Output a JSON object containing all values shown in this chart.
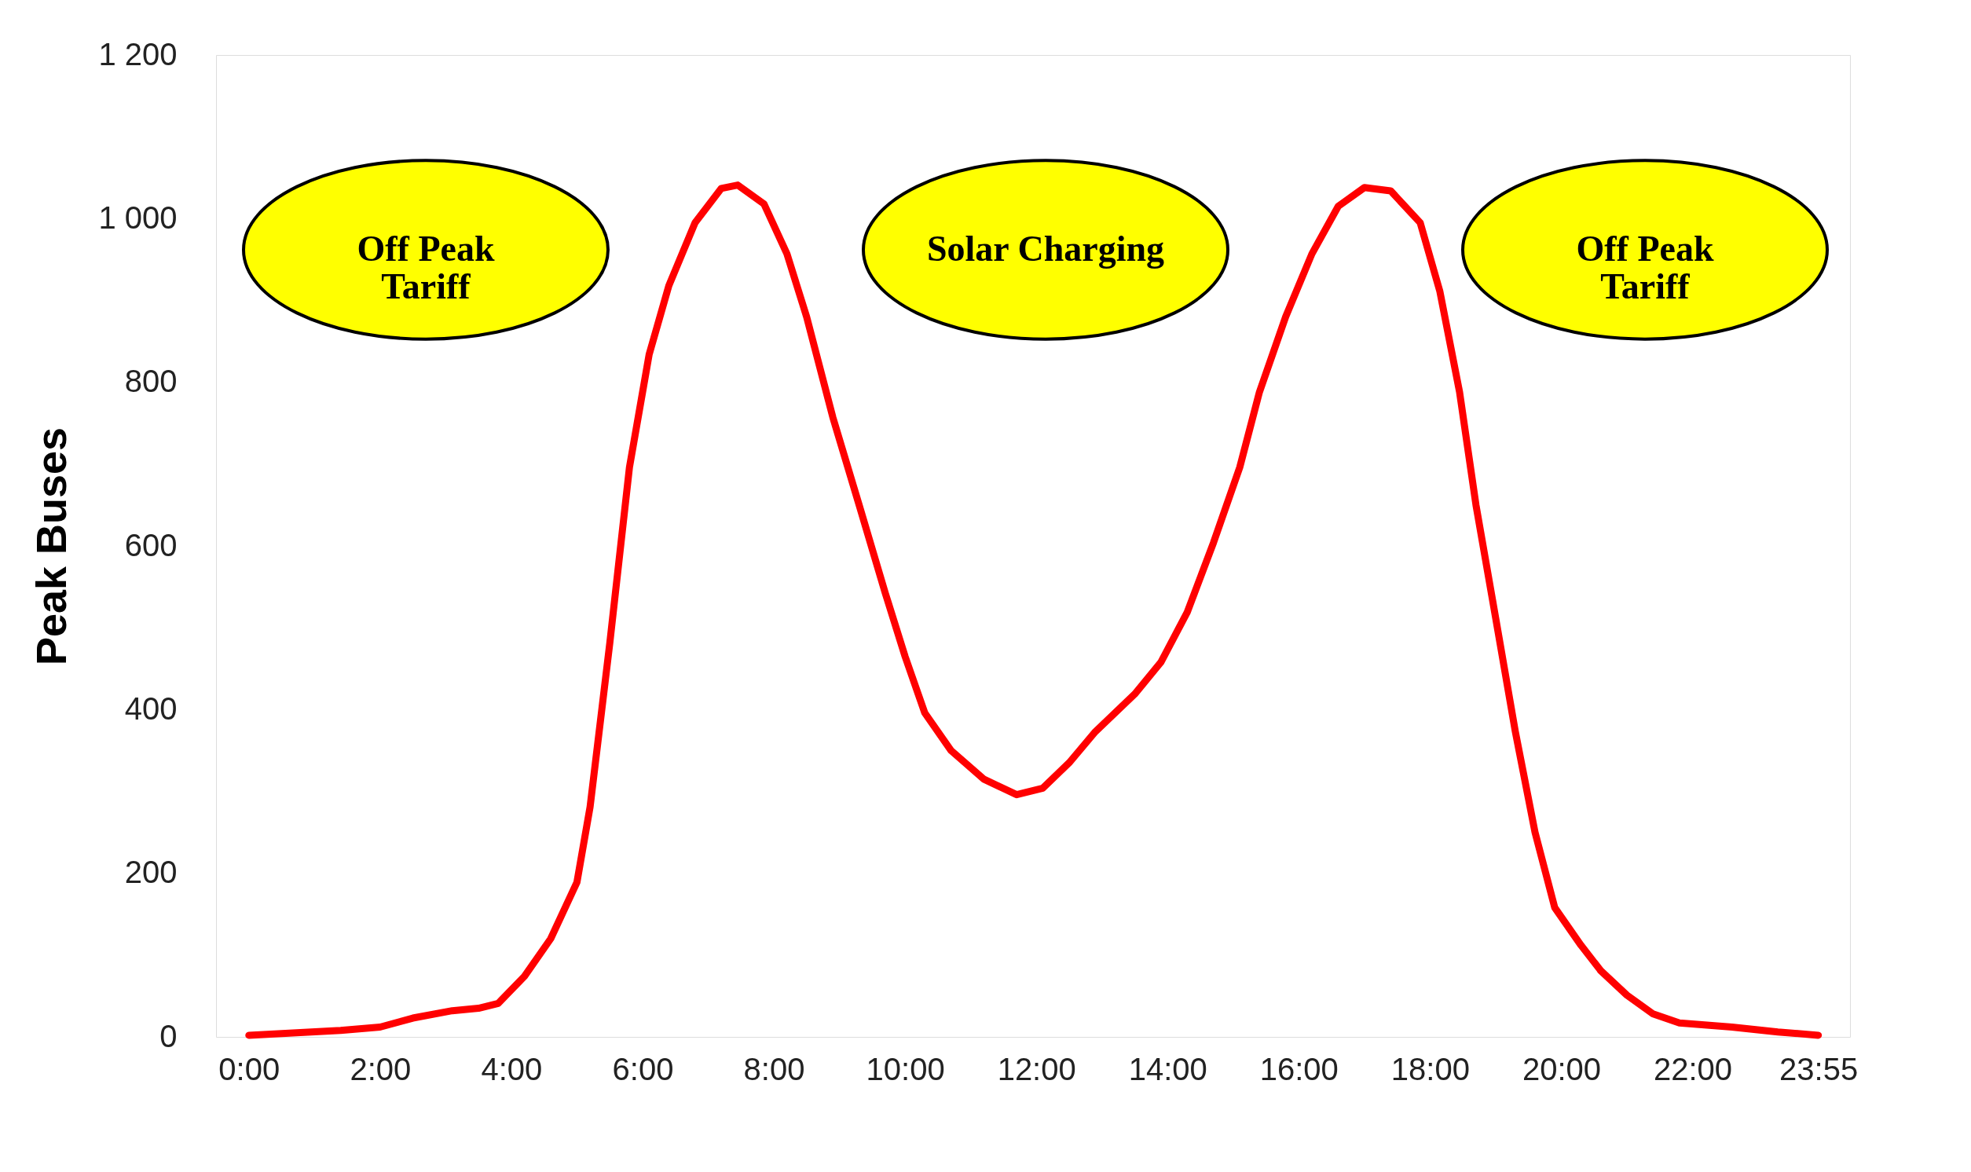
{
  "chart_data": {
    "type": "line",
    "ylabel": "Peak Buses",
    "xlim": [
      -0.5,
      24.4
    ],
    "ylim": [
      0,
      1200
    ],
    "xticks": [
      {
        "value": 0,
        "label": "0:00"
      },
      {
        "value": 2,
        "label": "2:00"
      },
      {
        "value": 4,
        "label": "4:00"
      },
      {
        "value": 6,
        "label": "6:00"
      },
      {
        "value": 8,
        "label": "8:00"
      },
      {
        "value": 10,
        "label": "10:00"
      },
      {
        "value": 12,
        "label": "12:00"
      },
      {
        "value": 14,
        "label": "14:00"
      },
      {
        "value": 16,
        "label": "16:00"
      },
      {
        "value": 18,
        "label": "18:00"
      },
      {
        "value": 20,
        "label": "20:00"
      },
      {
        "value": 22,
        "label": "22:00"
      },
      {
        "value": 23.917,
        "label": "23:55"
      }
    ],
    "yticks": [
      0,
      200,
      400,
      600,
      800,
      {
        "value": 1000,
        "label": "1 000"
      },
      {
        "value": 1200,
        "label": "1 200"
      }
    ],
    "grid": false,
    "marker": "none",
    "line_style": "solid",
    "annotations": [
      "Off Peak\nTariff",
      "Solar Charging",
      "Off Peak\nTariff"
    ],
    "series": [
      {
        "color": "#ff0000",
        "x": [
          0,
          1.4,
          2,
          2.5,
          3.1,
          3.5,
          3.8,
          4.2,
          4.6,
          5,
          5.2,
          5.5,
          5.8,
          6.1,
          6.4,
          6.8,
          7.2,
          7.45,
          7.85,
          8.2,
          8.5,
          8.9,
          9.3,
          9.7,
          10,
          10.3,
          10.7,
          11.2,
          11.7,
          12.1,
          12.5,
          12.9,
          13.5,
          13.9,
          14.3,
          14.7,
          15.1,
          15.4,
          15.8,
          16.2,
          16.6,
          17,
          17.4,
          17.85,
          18.15,
          18.45,
          18.7,
          19,
          19.3,
          19.6,
          19.9,
          20.3,
          20.6,
          21,
          21.4,
          21.8,
          22.6,
          23.3,
          23.917
        ],
        "values": [
          2,
          8,
          12,
          23,
          32,
          35,
          41,
          74,
          120,
          189,
          281,
          481,
          696,
          834,
          918,
          995,
          1037,
          1041,
          1018,
          957,
          880,
          757,
          650,
          542,
          465,
          396,
          350,
          315,
          296,
          304,
          335,
          373,
          419,
          458,
          519,
          604,
          696,
          788,
          880,
          957,
          1015,
          1038,
          1034,
          995,
          911,
          788,
          650,
          512,
          373,
          250,
          158,
          112,
          81,
          51,
          28,
          17,
          12,
          6,
          2
        ]
      }
    ]
  }
}
